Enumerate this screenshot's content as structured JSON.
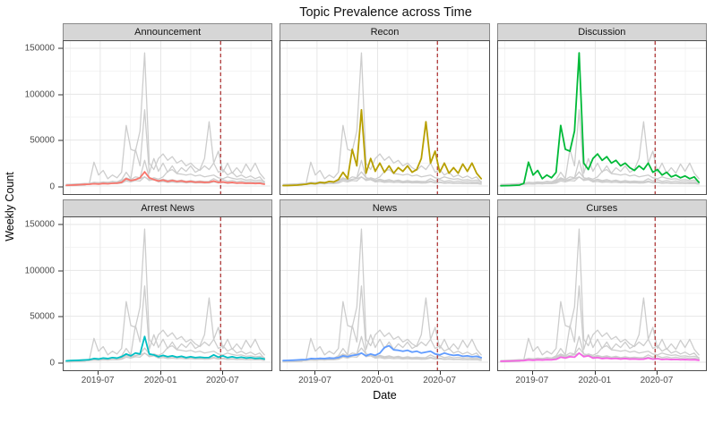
{
  "title": "Topic Prevalence across Time",
  "axes": {
    "x_label": "Date",
    "y_label": "Weekly Count",
    "x_ticks": [
      "2019-07",
      "2020-01",
      "2020-07"
    ],
    "y_ticks": [
      "150000",
      "100000",
      "50000",
      "0"
    ]
  },
  "chart_data": {
    "type": "line",
    "title": "Topic Prevalence across Time",
    "xlabel": "Date",
    "ylabel": "Weekly Count",
    "ylim": [
      0,
      150000
    ],
    "grid": "on",
    "legend": "none",
    "layout": "2x3 facet grid, each facet highlights one topic in color over all topics in gray",
    "facets": [
      "Announcement",
      "Recon",
      "Discussion",
      "Arrest News",
      "News",
      "Curses"
    ],
    "x_domain": [
      "2019-03-20",
      "2020-11-25"
    ],
    "x_tick_dates": [
      "2019-07-01",
      "2020-01-01",
      "2020-07-01"
    ],
    "x_tick_labels": [
      "2019-07",
      "2020-01",
      "2020-07"
    ],
    "x_minor_dates": [
      "2019-04-01",
      "2019-10-01",
      "2020-04-01",
      "2020-10-01"
    ],
    "y_major": [
      0,
      50000,
      100000,
      150000
    ],
    "y_minor": [
      25000,
      75000,
      125000
    ],
    "grid_major_color": "#e6e6e6",
    "grid_minor_color": "#f3f3f3",
    "background_line_color": "#cdcdcd",
    "vline": {
      "date": "2020-07-01",
      "color": "#b03a3a",
      "style": "dashed"
    },
    "dates": [
      "2019-03-20",
      "2019-04-03",
      "2019-04-17",
      "2019-05-01",
      "2019-05-15",
      "2019-05-29",
      "2019-06-12",
      "2019-06-26",
      "2019-07-10",
      "2019-07-24",
      "2019-08-07",
      "2019-08-21",
      "2019-09-04",
      "2019-09-18",
      "2019-10-02",
      "2019-10-16",
      "2019-10-30",
      "2019-11-13",
      "2019-11-27",
      "2019-12-11",
      "2019-12-25",
      "2020-01-08",
      "2020-01-22",
      "2020-02-05",
      "2020-02-19",
      "2020-03-04",
      "2020-03-18",
      "2020-04-01",
      "2020-04-15",
      "2020-04-29",
      "2020-05-13",
      "2020-05-27",
      "2020-06-10",
      "2020-06-24",
      "2020-07-08",
      "2020-07-22",
      "2020-08-05",
      "2020-08-19",
      "2020-09-02",
      "2020-09-16",
      "2020-09-30",
      "2020-10-14",
      "2020-10-28",
      "2020-11-11"
    ],
    "series": [
      {
        "name": "Announcement",
        "color": "#F8766D",
        "values": [
          800,
          1000,
          1200,
          1500,
          1800,
          2000,
          2500,
          2200,
          2800,
          2500,
          3000,
          3200,
          4000,
          8000,
          6000,
          7000,
          9000,
          15500,
          9000,
          7000,
          5500,
          6500,
          5000,
          6000,
          5000,
          5500,
          4500,
          5000,
          4200,
          4500,
          4000,
          4200,
          5500,
          4000,
          4500,
          3500,
          4000,
          3200,
          3500,
          3000,
          3200,
          2800,
          3000,
          2000
        ]
      },
      {
        "name": "Recon",
        "color": "#B79F00",
        "values": [
          500,
          600,
          800,
          1000,
          1500,
          2000,
          3000,
          2500,
          4000,
          3500,
          5000,
          4500,
          7000,
          15000,
          8000,
          40000,
          22000,
          83000,
          14000,
          30000,
          16000,
          25000,
          15000,
          22000,
          14000,
          20000,
          16000,
          22000,
          15000,
          18000,
          30000,
          70000,
          25000,
          38000,
          15000,
          25000,
          14000,
          20000,
          14000,
          24000,
          16000,
          25000,
          14000,
          8000
        ]
      },
      {
        "name": "Discussion",
        "color": "#00BA38",
        "values": [
          300,
          400,
          500,
          800,
          1000,
          3000,
          26000,
          12000,
          17000,
          8000,
          12000,
          9000,
          15000,
          66000,
          40000,
          38000,
          60000,
          145000,
          25000,
          18000,
          30000,
          35000,
          28000,
          32000,
          25000,
          28000,
          22000,
          25000,
          20000,
          17000,
          22000,
          18000,
          25000,
          15000,
          18000,
          12000,
          15000,
          10000,
          12000,
          9000,
          11000,
          8000,
          10000,
          4000
        ]
      },
      {
        "name": "Arrest News",
        "color": "#00BFC4",
        "values": [
          1500,
          1800,
          2000,
          2200,
          2500,
          2800,
          4000,
          3500,
          4500,
          4000,
          5000,
          4500,
          6000,
          9000,
          7000,
          10000,
          9000,
          28000,
          9000,
          8000,
          6000,
          7500,
          6000,
          7000,
          5500,
          6500,
          5000,
          6000,
          5000,
          5500,
          5000,
          5200,
          8000,
          5500,
          7000,
          5000,
          6000,
          4800,
          5500,
          4500,
          5000,
          4200,
          4500,
          3500
        ]
      },
      {
        "name": "News",
        "color": "#619CFF",
        "values": [
          1800,
          2000,
          2200,
          2500,
          2800,
          3000,
          4000,
          3800,
          4200,
          4000,
          4500,
          4300,
          5000,
          7000,
          6000,
          7500,
          8000,
          10000,
          7000,
          9000,
          7500,
          10000,
          16000,
          18000,
          13500,
          13000,
          12000,
          13000,
          11000,
          12000,
          10000,
          11000,
          12000,
          9000,
          8000,
          10000,
          8500,
          7500,
          8000,
          6500,
          7000,
          6000,
          6500,
          5000
        ]
      },
      {
        "name": "Curses",
        "color": "#F564E3",
        "values": [
          1000,
          1200,
          1300,
          1500,
          1600,
          1800,
          2500,
          2200,
          2600,
          2400,
          2800,
          2600,
          3200,
          5500,
          4500,
          6000,
          5500,
          10000,
          6000,
          7000,
          4500,
          5000,
          4000,
          4500,
          3800,
          4200,
          3500,
          4000,
          3400,
          3600,
          3200,
          3400,
          4500,
          3300,
          3800,
          3000,
          3300,
          2900,
          3100,
          2700,
          2900,
          2600,
          2800,
          2200
        ]
      }
    ]
  }
}
